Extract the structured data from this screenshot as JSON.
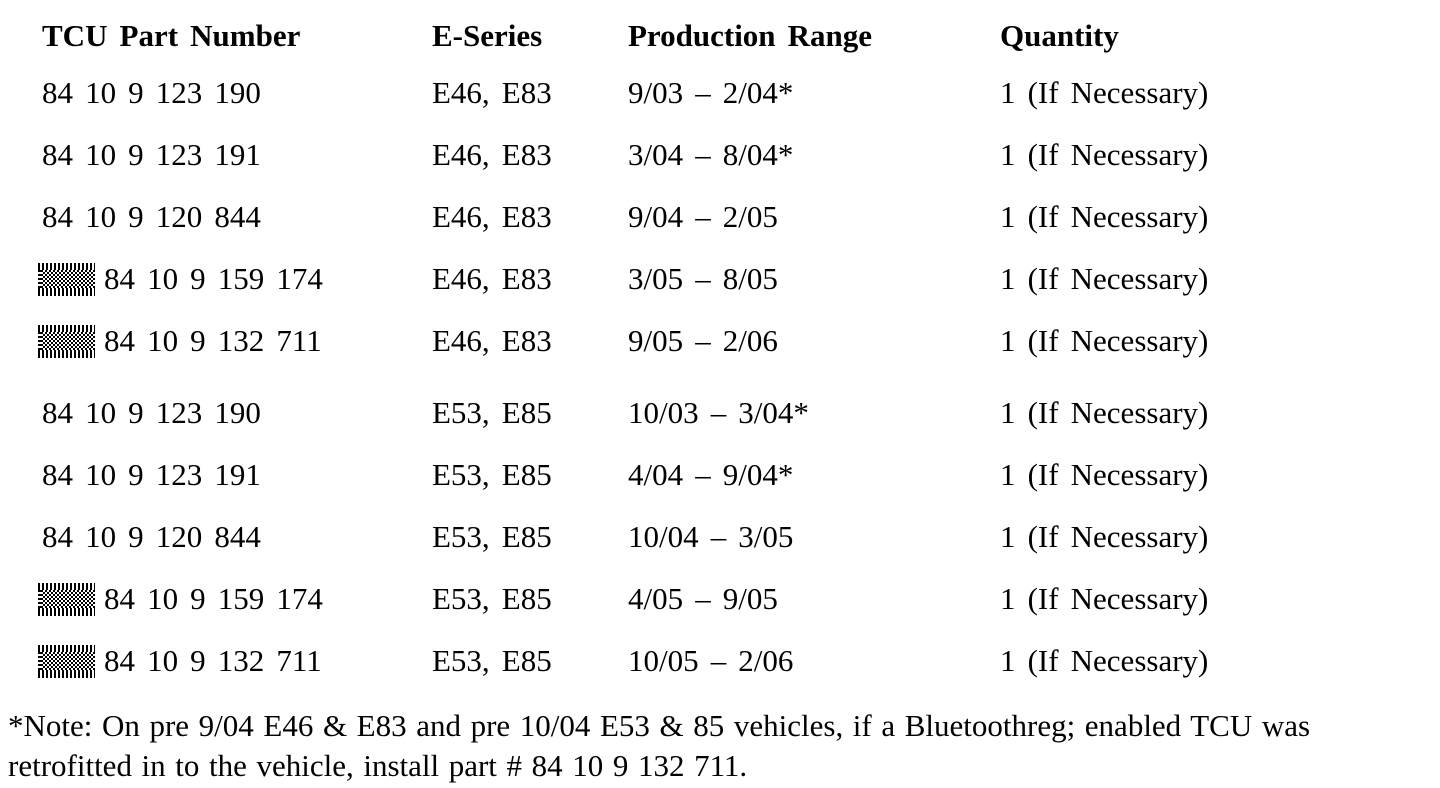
{
  "table": {
    "columns": [
      "TCU Part Number",
      "E-Series",
      "Production Range",
      "Quantity"
    ],
    "rows": [
      {
        "marker": false,
        "group_start": false,
        "part": "84 10 9 123 190",
        "series": "E46, E83",
        "range": "9/03 – 2/04*",
        "qty": "1 (If Necessary)"
      },
      {
        "marker": false,
        "group_start": false,
        "part": "84 10 9 123 191",
        "series": "E46, E83",
        "range": "3/04 – 8/04*",
        "qty": "1 (If Necessary)"
      },
      {
        "marker": false,
        "group_start": false,
        "part": "84 10 9 120 844",
        "series": "E46, E83",
        "range": "9/04 – 2/05",
        "qty": "1 (If Necessary)"
      },
      {
        "marker": true,
        "group_start": false,
        "part": "84 10 9 159 174",
        "series": "E46, E83",
        "range": "3/05 – 8/05",
        "qty": "1 (If Necessary)"
      },
      {
        "marker": true,
        "group_start": false,
        "part": "84 10 9 132 711",
        "series": "E46, E83",
        "range": "9/05 – 2/06",
        "qty": "1 (If Necessary)"
      },
      {
        "marker": false,
        "group_start": true,
        "part": "84 10 9 123 190",
        "series": "E53, E85",
        "range": "10/03 – 3/04*",
        "qty": "1 (If Necessary)"
      },
      {
        "marker": false,
        "group_start": false,
        "part": "84 10 9 123 191",
        "series": "E53, E85",
        "range": "4/04 – 9/04*",
        "qty": "1 (If Necessary)"
      },
      {
        "marker": false,
        "group_start": false,
        "part": "84 10 9 120 844",
        "series": "E53, E85",
        "range": "10/04 – 3/05",
        "qty": "1 (If Necessary)"
      },
      {
        "marker": true,
        "group_start": false,
        "part": "84 10 9 159 174",
        "series": "E53, E85",
        "range": "4/05 – 9/05",
        "qty": "1 (If Necessary)"
      },
      {
        "marker": true,
        "group_start": false,
        "part": "84 10 9 132 711",
        "series": "E53, E85",
        "range": "10/05 – 2/06",
        "qty": "1 (If Necessary)"
      }
    ]
  },
  "footnote": "*Note: On pre 9/04 E46 & E83 and pre 10/04 E53 & 85 vehicles, if a Bluetoothreg; enabled TCU was retrofitted in to the vehicle, install part # 84 10 9 132 711.",
  "colors": {
    "text": "#000000",
    "background": "#ffffff"
  }
}
